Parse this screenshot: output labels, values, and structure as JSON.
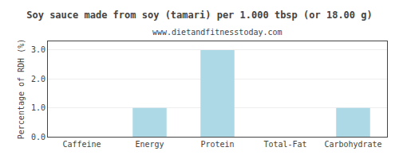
{
  "chart_data": {
    "type": "bar",
    "title": "Soy sauce made from soy (tamari) per 1.000 tbsp (or 18.00 g)",
    "subtitle": "www.dietandfitnesstoday.com",
    "categories": [
      "Caffeine",
      "Energy",
      "Protein",
      "Total-Fat",
      "Carbohydrate"
    ],
    "values": [
      0.0,
      1.0,
      3.0,
      0.0,
      1.0
    ],
    "color": "#add8e6",
    "ylabel": "Percentage of RDH (%)",
    "ylim": [
      0,
      3.3
    ],
    "yticks": [
      {
        "value": 0.0,
        "label": "0.0"
      },
      {
        "value": 1.0,
        "label": "1.0"
      },
      {
        "value": 2.0,
        "label": "2.0"
      },
      {
        "value": 3.0,
        "label": "3.0"
      }
    ],
    "grid": true
  }
}
